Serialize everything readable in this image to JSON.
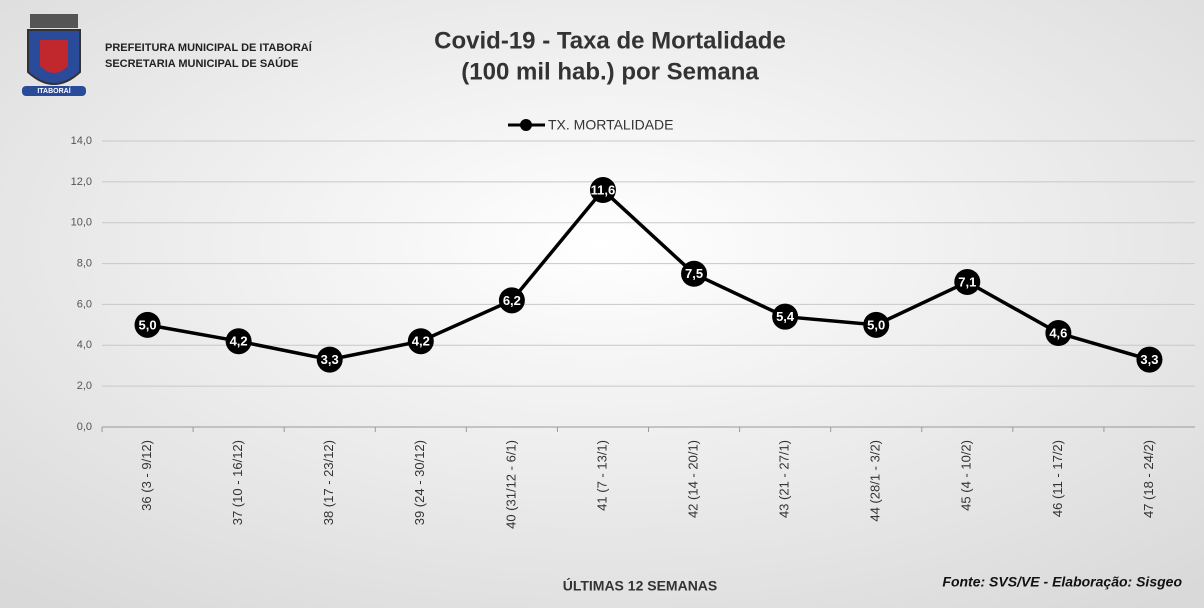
{
  "header": {
    "org_lines": [
      "PREFEITURA MUNICIPAL DE ITABORAÍ",
      "SECRETARIA MUNICIPAL DE SAÚDE"
    ],
    "logo_text": "ITABORAÍ"
  },
  "chart_data": {
    "type": "line",
    "title": [
      "Covid-19 - Taxa de Mortalidade",
      "(100 mil hab.) por Semana"
    ],
    "x_label": "ÚLTIMAS 12 SEMANAS",
    "source": "Fonte: SVS/VE - Elaboração: Sisgeo",
    "categories": [
      "36 (3 - 9/12)",
      "37 (10 - 16/12)",
      "38 (17 - 23/12)",
      "39 (24 - 30/12)",
      "40 (31/12 - 6/1)",
      "41 (7 - 13/1)",
      "42 (14 - 20/1)",
      "43 (21 - 27/1)",
      "44 (28/1 - 3/2)",
      "45 (4 - 10/2)",
      "46 (11 - 17/2)",
      "47 (18 - 24/2)"
    ],
    "series": [
      {
        "name": "TX. MORTALIDADE",
        "color": "#000000",
        "values": [
          5.0,
          4.2,
          3.3,
          4.2,
          6.2,
          11.6,
          7.5,
          5.4,
          5.0,
          7.1,
          4.6,
          3.3
        ],
        "value_labels": [
          "5,0",
          "4,2",
          "3,3",
          "4,2",
          "6,2",
          "11,6",
          "7,5",
          "5,4",
          "5,0",
          "7,1",
          "4,6",
          "3,3"
        ]
      }
    ],
    "ylim": [
      0,
      14
    ],
    "yticks": [
      {
        "value": 0,
        "label": "0,0"
      },
      {
        "value": 2,
        "label": "2,0"
      },
      {
        "value": 4,
        "label": "4,0"
      },
      {
        "value": 6,
        "label": "6,0"
      },
      {
        "value": 8,
        "label": "8,0"
      },
      {
        "value": 10,
        "label": "10,0"
      },
      {
        "value": 12,
        "label": "12,0"
      },
      {
        "value": 14,
        "label": "14,0"
      }
    ],
    "grid": true,
    "legend": "top"
  }
}
